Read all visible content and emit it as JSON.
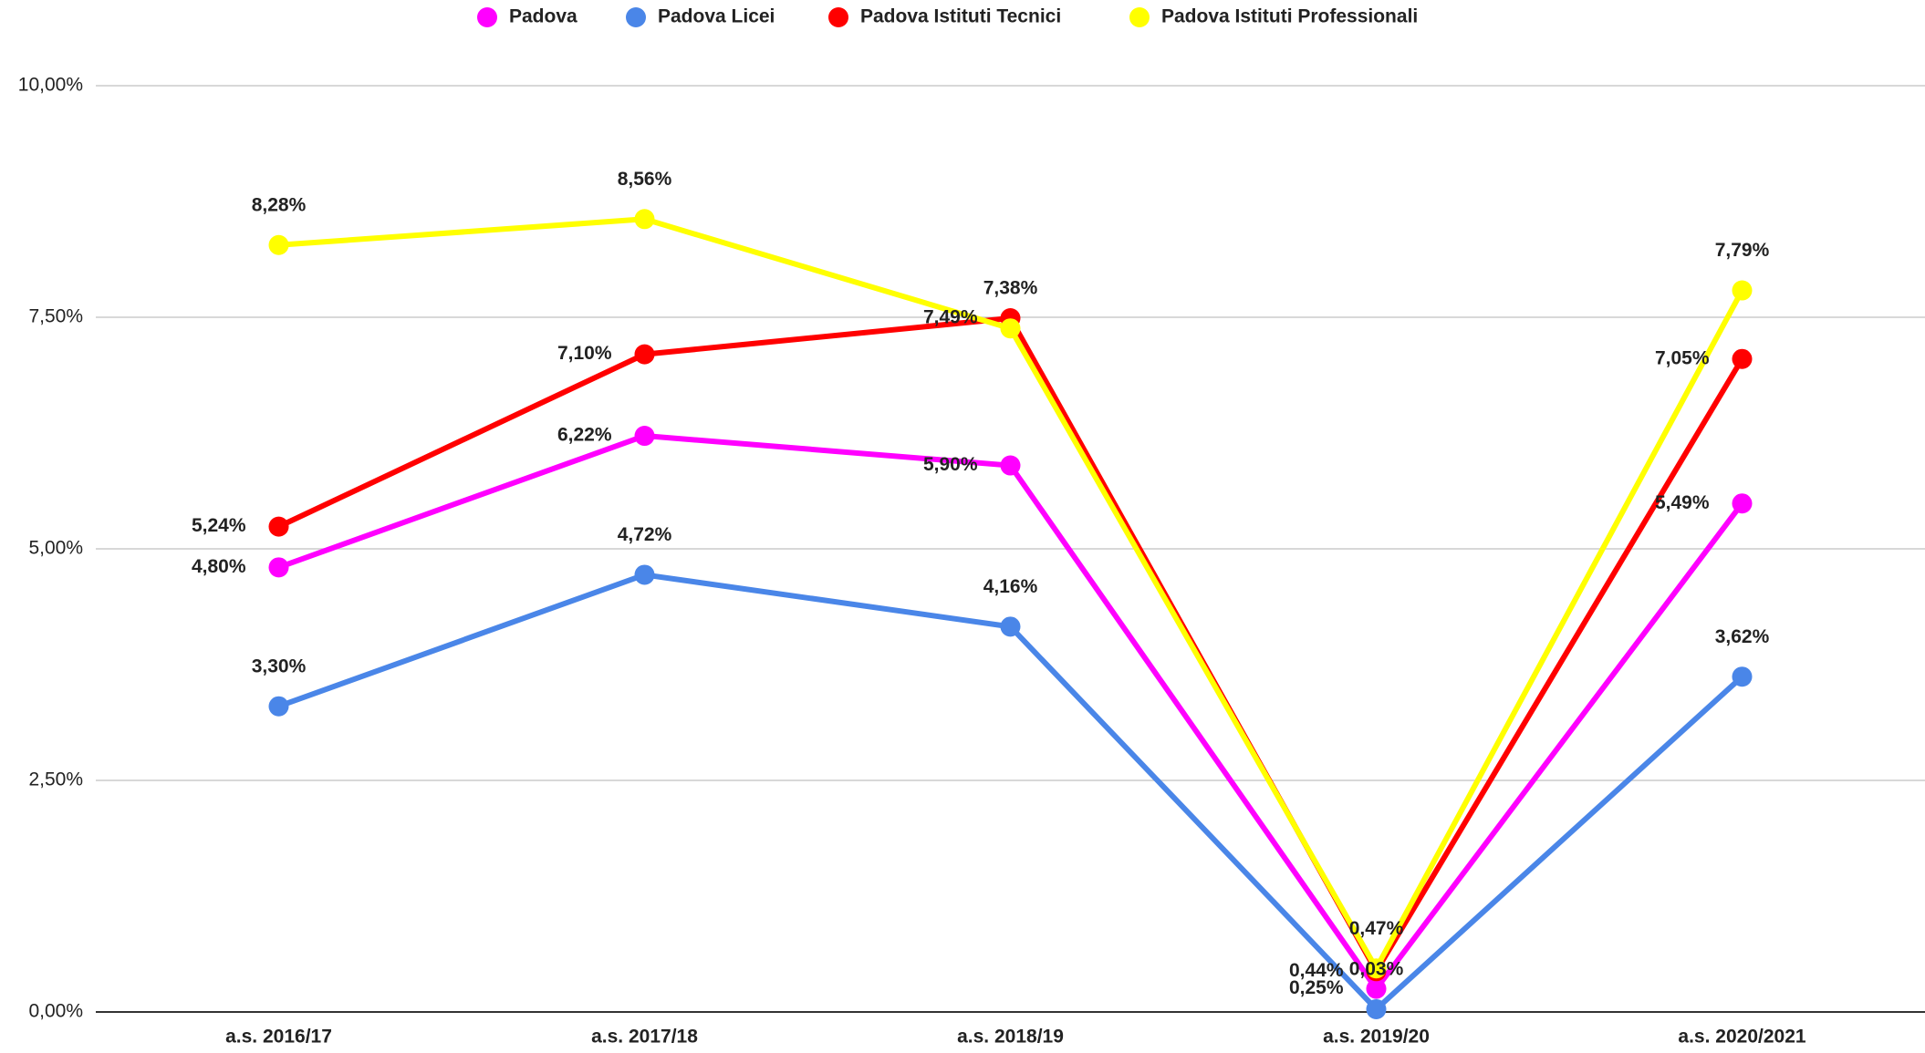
{
  "chart_data": {
    "type": "line",
    "categories": [
      "a.s. 2016/17",
      "a.s. 2017/18",
      "a.s. 2018/19",
      "a.s. 2019/20",
      "a.s. 2020/2021"
    ],
    "series": [
      {
        "name": "Padova",
        "color": "#ff00ff",
        "values": [
          4.8,
          6.22,
          5.9,
          0.25,
          5.49
        ],
        "value_labels": [
          "4,80%",
          "6,22%",
          "5,90%",
          "0,25%",
          "5,49%"
        ]
      },
      {
        "name": "Padova Licei",
        "color": "#4a86e8",
        "values": [
          3.3,
          4.72,
          4.16,
          0.03,
          3.62
        ],
        "value_labels": [
          "3,30%",
          "4,72%",
          "4,16%",
          "0,03%",
          "3,62%"
        ]
      },
      {
        "name": "Padova Istituti Tecnici",
        "color": "#ff0000",
        "values": [
          5.24,
          7.1,
          7.49,
          0.44,
          7.05
        ],
        "value_labels": [
          "5,24%",
          "7,10%",
          "7,49%",
          "0,44%",
          "7,05%"
        ]
      },
      {
        "name": "Padova Istituti Professionali",
        "color": "#ffff00",
        "values": [
          8.28,
          8.56,
          7.38,
          0.47,
          7.79
        ],
        "value_labels": [
          "8,28%",
          "8,56%",
          "7,38%",
          "0,47%",
          "7,79%"
        ]
      }
    ],
    "ylim": [
      0,
      10
    ],
    "yticks": [
      {
        "value": 0,
        "label": "0,00%"
      },
      {
        "value": 2.5,
        "label": "2,50%"
      },
      {
        "value": 5,
        "label": "5,00%"
      },
      {
        "value": 7.5,
        "label": "7,50%"
      },
      {
        "value": 10,
        "label": "10,00%"
      }
    ],
    "grid": true,
    "legend": "top"
  }
}
